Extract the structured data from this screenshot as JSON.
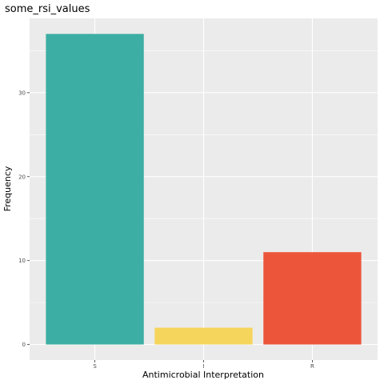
{
  "chart_data": {
    "type": "bar",
    "title": "some_rsi_values",
    "xlabel": "Antimicrobial Interpretation",
    "ylabel": "Frequency",
    "categories": [
      "S",
      "I",
      "R"
    ],
    "values": [
      37,
      2,
      11
    ],
    "colors": [
      "#3CAEA3",
      "#F6D55C",
      "#ED553B"
    ],
    "yticks": [
      0,
      10,
      20,
      30
    ],
    "ylim": [
      -1.85,
      38.85
    ],
    "grid": true,
    "legend": "none",
    "panel_background": "#EBEBEB",
    "grid_color": "#FFFFFF"
  }
}
